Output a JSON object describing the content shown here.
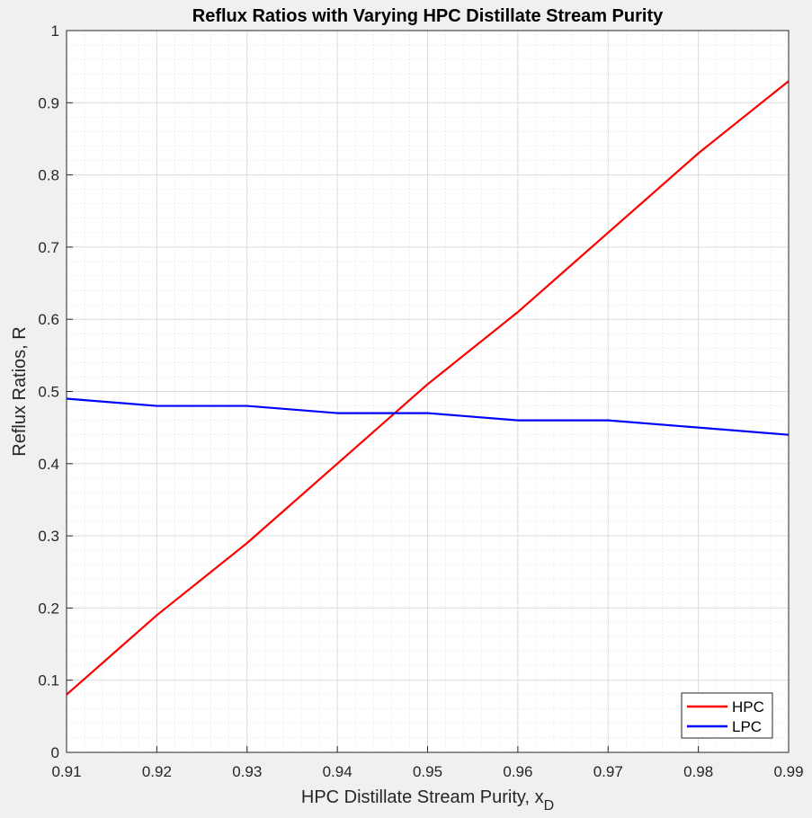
{
  "chart_data": {
    "type": "line",
    "title": "Reflux Ratios with Varying HPC Distillate Stream Purity",
    "xlabel": "HPC Distillate Stream Purity, x",
    "xlabel_subscript": "D",
    "ylabel": "Reflux Ratios, R",
    "xlim": [
      0.91,
      0.99
    ],
    "ylim": [
      0,
      1
    ],
    "xticks": [
      "0.91",
      "0.92",
      "0.93",
      "0.94",
      "0.95",
      "0.96",
      "0.97",
      "0.98",
      "0.99"
    ],
    "yticks": [
      "0",
      "0.1",
      "0.2",
      "0.3",
      "0.4",
      "0.5",
      "0.6",
      "0.7",
      "0.8",
      "0.9",
      "1"
    ],
    "grid": true,
    "minor_grid": true,
    "legend_position": "bottom-right",
    "x": [
      0.91,
      0.92,
      0.93,
      0.94,
      0.95,
      0.96,
      0.97,
      0.98,
      0.99
    ],
    "series": [
      {
        "name": "HPC",
        "color": "#ff0000",
        "values": [
          0.08,
          0.19,
          0.29,
          0.4,
          0.51,
          0.61,
          0.72,
          0.83,
          0.93
        ]
      },
      {
        "name": "LPC",
        "color": "#0000ff",
        "values": [
          0.49,
          0.48,
          0.48,
          0.47,
          0.47,
          0.46,
          0.46,
          0.45,
          0.44
        ]
      }
    ]
  }
}
